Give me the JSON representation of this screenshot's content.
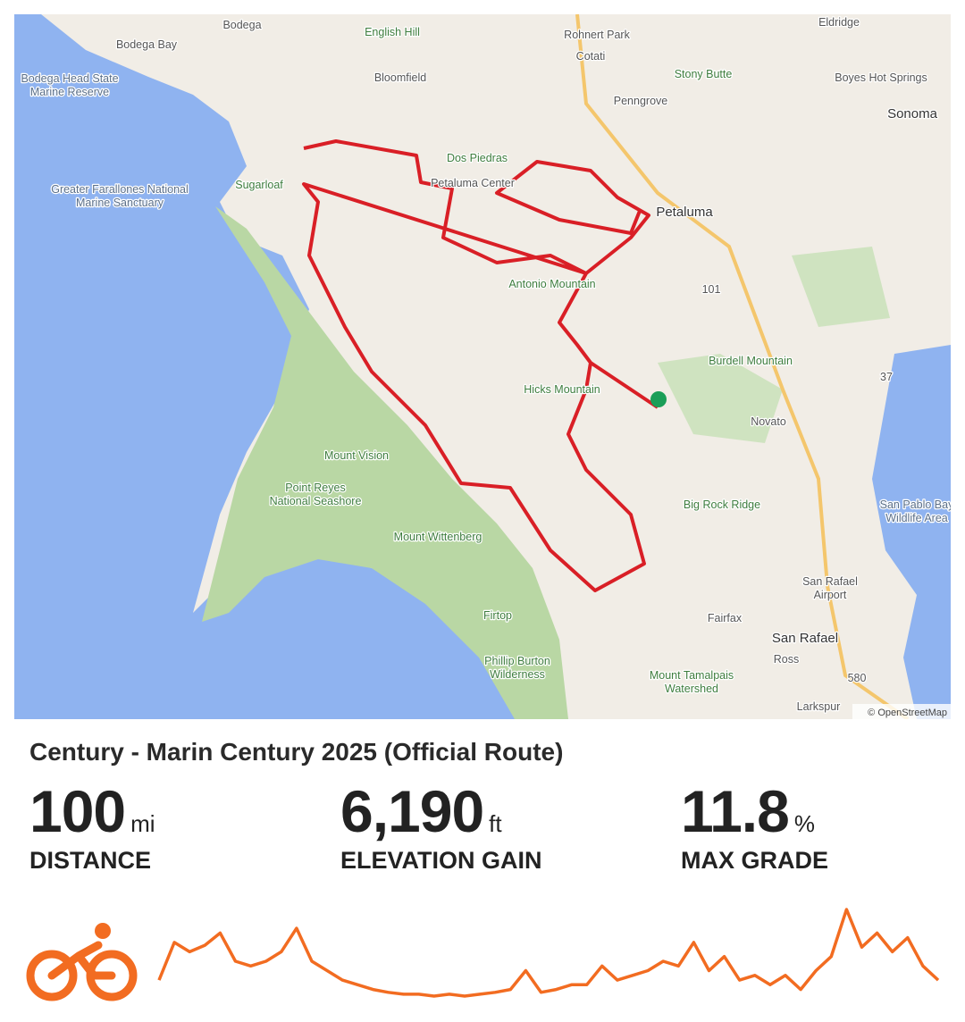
{
  "map": {
    "labels": [
      "Bodega",
      "English Hill",
      "Rohnert Park",
      "Eldridge",
      "Bodega Bay",
      "Cotati",
      "Stony Butte",
      "Bodega Head State Marine Reserve",
      "Bloomfield",
      "Boyes Hot Springs",
      "Penngrove",
      "Sonoma",
      "Dos Piedras",
      "Sugarloaf",
      "Petaluma Center",
      "Greater Farallones National Marine Sanctuary",
      "Petaluma",
      "Antonio Mountain",
      "101",
      "Burdell Mountain",
      "37",
      "Hicks Mountain",
      "Novato",
      "Mount Vision",
      "Point Reyes National Seashore",
      "Big Rock Ridge",
      "San Pablo Bay Wildlife Area",
      "Mount Wittenberg",
      "San Rafael Airport",
      "Firtop",
      "Fairfax",
      "San Rafael",
      "Ross",
      "Phillip Burton Wilderness",
      "Mount Tamalpais Watershed",
      "580",
      "Larkspur"
    ],
    "attribution": "© OpenStreetMap"
  },
  "route": {
    "title": "Century - Marin Century 2025 (Official Route)",
    "stats": [
      {
        "value": "100",
        "unit": "mi",
        "label": "DISTANCE"
      },
      {
        "value": "6,190",
        "unit": "ft",
        "label": "ELEVATION GAIN"
      },
      {
        "value": "11.8",
        "unit": "%",
        "label": "MAX GRADE"
      }
    ]
  },
  "elevation_profile": {
    "color": "#f26c21",
    "values": [
      25,
      65,
      55,
      62,
      75,
      45,
      40,
      45,
      55,
      80,
      45,
      35,
      25,
      20,
      15,
      12,
      10,
      10,
      8,
      10,
      8,
      10,
      12,
      15,
      35,
      12,
      15,
      20,
      20,
      40,
      25,
      30,
      35,
      45,
      40,
      65,
      35,
      50,
      25,
      30,
      20,
      30,
      15,
      35,
      50,
      100,
      60,
      75,
      55,
      70,
      40,
      25
    ]
  }
}
